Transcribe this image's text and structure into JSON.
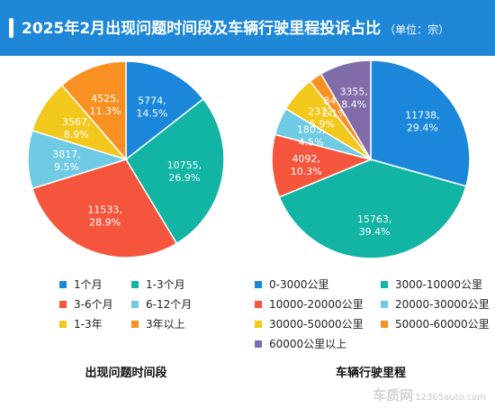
{
  "header": {
    "title": "2025年2月出现问题时间段及车辆行驶里程投诉占比",
    "unit": "（单位：宗）"
  },
  "watermark": {
    "logo": "车质网",
    "url": "12365auto.com"
  },
  "chart_data": [
    {
      "type": "pie",
      "title": "出现问题时间段",
      "legend_position": "bottom",
      "slices": [
        {
          "label": "1个月",
          "value": 5774,
          "percent": "14.5%",
          "color": "#1a87da"
        },
        {
          "label": "1-3个月",
          "value": 10755,
          "percent": "26.9%",
          "color": "#12b5a4"
        },
        {
          "label": "3-6个月",
          "value": 11533,
          "percent": "28.9%",
          "color": "#f5553d"
        },
        {
          "label": "6-12个月",
          "value": 3817,
          "percent": "9.5%",
          "color": "#6fcbe3"
        },
        {
          "label": "1-3年",
          "value": 3567,
          "percent": "8.9%",
          "color": "#f2c81c"
        },
        {
          "label": "3年以上",
          "value": 4525,
          "percent": "11.3%",
          "color": "#f89022"
        }
      ]
    },
    {
      "type": "pie",
      "title": "车辆行驶里程",
      "legend_position": "bottom",
      "slices": [
        {
          "label": "0-3000公里",
          "value": 11738,
          "percent": "29.4%",
          "color": "#1a87da"
        },
        {
          "label": "3000-10000公里",
          "value": 15763,
          "percent": "39.4%",
          "color": "#12b5a4"
        },
        {
          "label": "10000-20000公里",
          "value": 4092,
          "percent": "10.3%",
          "color": "#f5553d"
        },
        {
          "label": "20000-30000公里",
          "value": 1803,
          "percent": "4.5%",
          "color": "#6fcbe3"
        },
        {
          "label": "30000-50000公里",
          "value": 2372,
          "percent": "5.9%",
          "color": "#f2c81c"
        },
        {
          "label": "50000-60000公里",
          "value": 848,
          "percent": "2.1%",
          "color": "#f89022"
        },
        {
          "label": "60000公里以上",
          "value": 3355,
          "percent": "8.4%",
          "color": "#7f6ca8"
        }
      ]
    }
  ]
}
